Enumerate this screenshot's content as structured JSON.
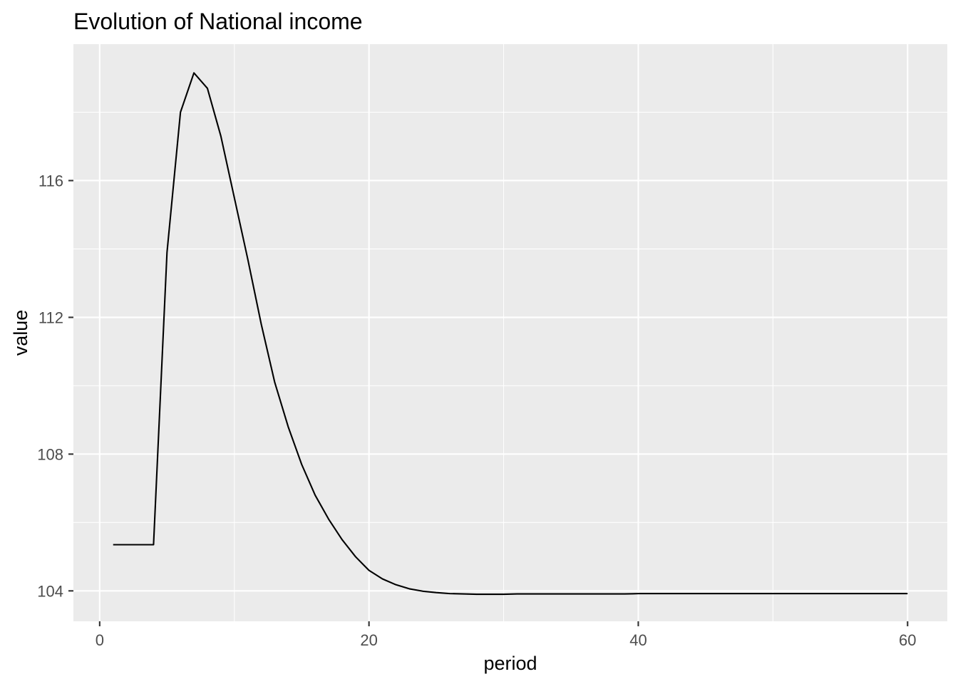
{
  "chart_data": {
    "type": "line",
    "title": "Evolution of National income",
    "xlabel": "period",
    "ylabel": "value",
    "xlim": [
      -1.95,
      62.95
    ],
    "ylim": [
      103.11,
      119.99
    ],
    "x_major_ticks": [
      0,
      20,
      40,
      60
    ],
    "x_minor_ticks": [
      10,
      30,
      50
    ],
    "y_major_ticks": [
      104,
      108,
      112,
      116
    ],
    "y_minor_ticks": [
      106,
      110,
      114,
      118
    ],
    "x_tick_labels": [
      "0",
      "20",
      "40",
      "60"
    ],
    "y_tick_labels": [
      "104",
      "108",
      "112",
      "116"
    ],
    "grid": true,
    "legend": "none",
    "background_color": "#ebebeb",
    "line_color": "#000000",
    "series": [
      {
        "x": [
          1,
          2,
          3,
          4,
          5,
          6,
          7,
          8,
          9,
          10,
          11,
          12,
          13,
          14,
          15,
          16,
          17,
          18,
          19,
          20,
          21,
          22,
          23,
          24,
          25,
          26,
          27,
          28,
          29,
          30,
          31,
          32,
          33,
          34,
          35,
          36,
          37,
          38,
          39,
          40,
          41,
          42,
          43,
          44,
          45,
          46,
          47,
          48,
          49,
          50,
          51,
          52,
          53,
          54,
          55,
          56,
          57,
          58,
          59,
          60
        ],
        "y": [
          105.35,
          105.35,
          105.35,
          105.35,
          113.9,
          118.0,
          119.15,
          118.7,
          117.3,
          115.5,
          113.7,
          111.8,
          110.1,
          108.8,
          107.7,
          106.8,
          106.1,
          105.5,
          105.0,
          104.6,
          104.35,
          104.18,
          104.06,
          103.99,
          103.95,
          103.92,
          103.91,
          103.9,
          103.9,
          103.9,
          103.91,
          103.91,
          103.91,
          103.91,
          103.91,
          103.91,
          103.91,
          103.91,
          103.91,
          103.92,
          103.92,
          103.92,
          103.92,
          103.92,
          103.92,
          103.92,
          103.92,
          103.92,
          103.92,
          103.92,
          103.92,
          103.92,
          103.92,
          103.92,
          103.92,
          103.92,
          103.92,
          103.92,
          103.92,
          103.92
        ]
      }
    ]
  }
}
